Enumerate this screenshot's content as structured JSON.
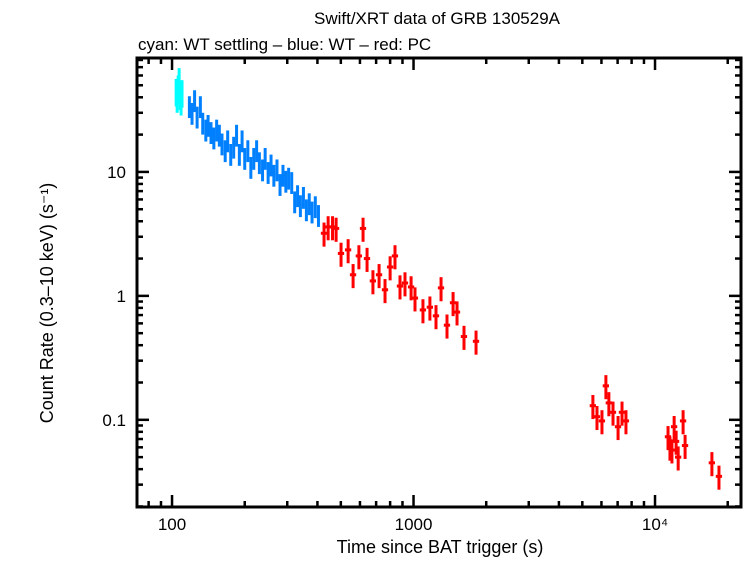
{
  "chart_data": {
    "type": "scatter",
    "title": "Swift/XRT data of GRB 130529A",
    "subtitle": "cyan: WT settling – blue: WT – red: PC",
    "xlabel": "Time since BAT trigger (s)",
    "ylabel": "Count Rate (0.3–10 keV) (s⁻¹)",
    "xscale": "log",
    "yscale": "log",
    "xlim": [
      71.6,
      22700
    ],
    "ylim": [
      0.0198,
      83
    ],
    "grid": false,
    "xticks": [
      {
        "value": 100,
        "label": "100"
      },
      {
        "value": 1000,
        "label": "1000"
      },
      {
        "value": 10000,
        "label": "10⁴"
      }
    ],
    "yticks": [
      {
        "value": 0.1,
        "label": "0.1"
      },
      {
        "value": 1,
        "label": "1"
      },
      {
        "value": 10,
        "label": "10"
      }
    ],
    "series": [
      {
        "name": "WT settling",
        "color": "#00ffff",
        "xerr_frac": 0.004,
        "yerr_frac": 0.25,
        "points": [
          [
            104,
            45
          ],
          [
            105,
            40
          ],
          [
            106,
            48
          ],
          [
            107,
            55
          ],
          [
            108,
            42
          ],
          [
            109,
            38
          ],
          [
            110,
            44
          ]
        ]
      },
      {
        "name": "WT",
        "color": "#0080ff",
        "xerr_frac": 0.012,
        "yerr_frac": 0.2,
        "points": [
          [
            118,
            34
          ],
          [
            121,
            30
          ],
          [
            124,
            38
          ],
          [
            127,
            28
          ],
          [
            131,
            34
          ],
          [
            134,
            25
          ],
          [
            138,
            22
          ],
          [
            141,
            24
          ],
          [
            145,
            21
          ],
          [
            149,
            19
          ],
          [
            153,
            22
          ],
          [
            157,
            20
          ],
          [
            161,
            17
          ],
          [
            166,
            15
          ],
          [
            170,
            18
          ],
          [
            175,
            14
          ],
          [
            180,
            16
          ],
          [
            185,
            20
          ],
          [
            190,
            14
          ],
          [
            195,
            18
          ],
          [
            200,
            13
          ],
          [
            206,
            15
          ],
          [
            212,
            11
          ],
          [
            218,
            13
          ],
          [
            224,
            15
          ],
          [
            230,
            12
          ],
          [
            237,
            10.5
          ],
          [
            243,
            13
          ],
          [
            250,
            10
          ],
          [
            257,
            11.5
          ],
          [
            264,
            9.5
          ],
          [
            272,
            10.5
          ],
          [
            280,
            8
          ],
          [
            288,
            9.5
          ],
          [
            296,
            8.5
          ],
          [
            304,
            9
          ],
          [
            313,
            8.3
          ],
          [
            322,
            5.8
          ],
          [
            331,
            6.5
          ],
          [
            340,
            5.4
          ],
          [
            350,
            6.3
          ],
          [
            360,
            5.0
          ],
          [
            370,
            5.6
          ],
          [
            380,
            4.8
          ],
          [
            392,
            5.3
          ],
          [
            404,
            4.5
          ]
        ]
      },
      {
        "name": "PC",
        "color": "#ff0000",
        "xerr_frac": 0.03,
        "yerr_frac": 0.22,
        "points": [
          [
            426,
            3.2
          ],
          [
            443,
            3.6
          ],
          [
            462,
            3.6
          ],
          [
            478,
            3.5
          ],
          [
            501,
            2.2
          ],
          [
            536,
            2.35
          ],
          [
            562,
            1.48
          ],
          [
            594,
            2.1
          ],
          [
            618,
            3.5
          ],
          [
            642,
            2.0
          ],
          [
            679,
            1.32
          ],
          [
            720,
            1.48
          ],
          [
            762,
            1.12
          ],
          [
            800,
            1.71
          ],
          [
            838,
            2.1
          ],
          [
            879,
            1.2
          ],
          [
            922,
            1.27
          ],
          [
            977,
            1.18
          ],
          [
            1014,
            0.96
          ],
          [
            1094,
            0.77
          ],
          [
            1169,
            0.81
          ],
          [
            1239,
            0.69
          ],
          [
            1300,
            1.16
          ],
          [
            1376,
            0.58
          ],
          [
            1458,
            0.88
          ],
          [
            1514,
            0.74
          ],
          [
            1618,
            0.47
          ],
          [
            1815,
            0.43
          ],
          [
            5530,
            0.13
          ],
          [
            5750,
            0.106
          ],
          [
            6030,
            0.098
          ],
          [
            6260,
            0.188
          ],
          [
            6440,
            0.137
          ],
          [
            6700,
            0.115
          ],
          [
            7030,
            0.088
          ],
          [
            7300,
            0.115
          ],
          [
            7580,
            0.098
          ],
          [
            11320,
            0.073
          ],
          [
            11530,
            0.06
          ],
          [
            11750,
            0.057
          ],
          [
            12000,
            0.088
          ],
          [
            12230,
            0.067
          ],
          [
            12470,
            0.05
          ],
          [
            13070,
            0.098
          ],
          [
            13320,
            0.062
          ],
          [
            17200,
            0.045
          ],
          [
            18400,
            0.035
          ]
        ]
      }
    ]
  }
}
